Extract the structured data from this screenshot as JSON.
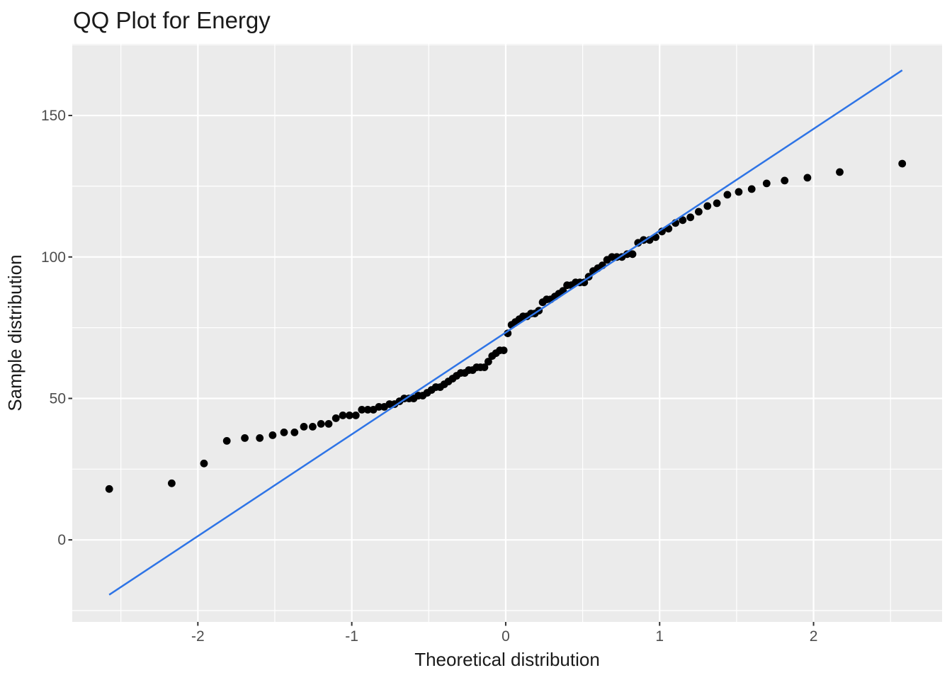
{
  "chart_data": {
    "type": "scatter",
    "subtype": "qq-plot",
    "title": "QQ Plot for Energy",
    "xlabel": "Theoretical distribution",
    "ylabel": "Sample distribution",
    "xlim": [
      -2.816,
      2.835
    ],
    "ylim": [
      -29.0,
      175.3
    ],
    "x_major_ticks": [
      -2,
      -1,
      0,
      1,
      2
    ],
    "x_tick_labels": [
      "-2",
      "-1",
      "0",
      "1",
      "2"
    ],
    "y_major_ticks": [
      0,
      50,
      100,
      150
    ],
    "y_tick_labels": [
      "0",
      "50",
      "100",
      "150"
    ],
    "x_minor_ticks": [
      -2.5,
      -1.5,
      -0.5,
      0.5,
      1.5,
      2.5
    ],
    "y_minor_ticks": [
      -25,
      25,
      75,
      125,
      175
    ],
    "grid": "major and minor white gridlines on grey panel",
    "legend": "none",
    "n_points": 100,
    "series": [
      {
        "name": "sample-vs-theoretical-quantiles",
        "points": [
          [
            -2.576,
            18
          ],
          [
            -2.17,
            20
          ],
          [
            -1.96,
            27
          ],
          [
            -1.812,
            35
          ],
          [
            -1.695,
            36
          ],
          [
            -1.598,
            36
          ],
          [
            -1.514,
            37
          ],
          [
            -1.44,
            38
          ],
          [
            -1.372,
            38
          ],
          [
            -1.311,
            40
          ],
          [
            -1.254,
            40
          ],
          [
            -1.2,
            41
          ],
          [
            -1.15,
            41
          ],
          [
            -1.103,
            43
          ],
          [
            -1.058,
            44
          ],
          [
            -1.015,
            44
          ],
          [
            -0.974,
            44
          ],
          [
            -0.935,
            46
          ],
          [
            -0.896,
            46
          ],
          [
            -0.86,
            46
          ],
          [
            -0.824,
            47
          ],
          [
            -0.789,
            47
          ],
          [
            -0.755,
            48
          ],
          [
            -0.722,
            48
          ],
          [
            -0.69,
            49
          ],
          [
            -0.659,
            50
          ],
          [
            -0.628,
            50
          ],
          [
            -0.598,
            50
          ],
          [
            -0.568,
            51
          ],
          [
            -0.539,
            51
          ],
          [
            -0.51,
            52
          ],
          [
            -0.482,
            53
          ],
          [
            -0.454,
            54
          ],
          [
            -0.426,
            54
          ],
          [
            -0.399,
            55
          ],
          [
            -0.372,
            56
          ],
          [
            -0.345,
            57
          ],
          [
            -0.319,
            58
          ],
          [
            -0.292,
            59
          ],
          [
            -0.266,
            59
          ],
          [
            -0.24,
            60
          ],
          [
            -0.215,
            60
          ],
          [
            -0.189,
            61
          ],
          [
            -0.164,
            61
          ],
          [
            -0.138,
            61
          ],
          [
            -0.113,
            63
          ],
          [
            -0.088,
            65
          ],
          [
            -0.063,
            66
          ],
          [
            -0.038,
            67
          ],
          [
            -0.013,
            67
          ],
          [
            0.013,
            73
          ],
          [
            0.038,
            76
          ],
          [
            0.063,
            77
          ],
          [
            0.088,
            78
          ],
          [
            0.113,
            79
          ],
          [
            0.138,
            79
          ],
          [
            0.164,
            80
          ],
          [
            0.189,
            80
          ],
          [
            0.215,
            81
          ],
          [
            0.24,
            84
          ],
          [
            0.266,
            85
          ],
          [
            0.292,
            85
          ],
          [
            0.319,
            86
          ],
          [
            0.345,
            87
          ],
          [
            0.372,
            88
          ],
          [
            0.399,
            90
          ],
          [
            0.426,
            90
          ],
          [
            0.454,
            91
          ],
          [
            0.482,
            91
          ],
          [
            0.51,
            91
          ],
          [
            0.539,
            93
          ],
          [
            0.568,
            95
          ],
          [
            0.598,
            96
          ],
          [
            0.628,
            97
          ],
          [
            0.659,
            99
          ],
          [
            0.69,
            100
          ],
          [
            0.722,
            100
          ],
          [
            0.755,
            100
          ],
          [
            0.789,
            101
          ],
          [
            0.824,
            101
          ],
          [
            0.86,
            105
          ],
          [
            0.896,
            106
          ],
          [
            0.935,
            106
          ],
          [
            0.974,
            107
          ],
          [
            1.015,
            109
          ],
          [
            1.058,
            110
          ],
          [
            1.103,
            112
          ],
          [
            1.15,
            113
          ],
          [
            1.2,
            114
          ],
          [
            1.254,
            116
          ],
          [
            1.311,
            118
          ],
          [
            1.372,
            119
          ],
          [
            1.44,
            122
          ],
          [
            1.514,
            123
          ],
          [
            1.598,
            124
          ],
          [
            1.695,
            126
          ],
          [
            1.812,
            127
          ],
          [
            1.96,
            128
          ],
          [
            2.17,
            130
          ],
          [
            2.576,
            133
          ]
        ]
      }
    ],
    "reference_line": {
      "x1": -2.576,
      "y1": -19.4,
      "x2": 2.576,
      "y2": 166.0,
      "color": "#2E74E6"
    },
    "colors": {
      "point": "#000000",
      "panel_bg": "#EBEBEB",
      "grid_major": "#FFFFFF",
      "grid_minor": "#FFFFFF",
      "tick_mark": "#333333",
      "tick_label": "#4D4D4D",
      "axis_title": "#1A1A1A",
      "title": "#1A1A1A",
      "background": "#FFFFFF"
    }
  }
}
